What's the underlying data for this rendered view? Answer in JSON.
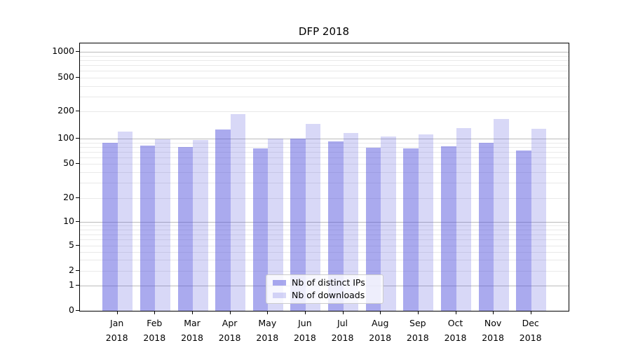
{
  "chart_data": {
    "type": "bar",
    "title": "DFP 2018",
    "y_scale": "log-like (symlog) with labeled ticks",
    "categories": [
      "Jan 2018",
      "Feb 2018",
      "Mar 2018",
      "Apr 2018",
      "May 2018",
      "Jun 2018",
      "Jul 2018",
      "Aug 2018",
      "Sep 2018",
      "Oct 2018",
      "Nov 2018",
      "Dec 2018"
    ],
    "series": [
      {
        "name": "Nb of distinct IPs",
        "color": "#aaaaee",
        "fill_rgba": "rgba(85,85,221,0.5)",
        "values": [
          90,
          83,
          80,
          125,
          76,
          100,
          93,
          78,
          76,
          81,
          90,
          72
        ]
      },
      {
        "name": "Nb of downloads",
        "color": "#d8d8f8",
        "fill_rgba": "rgba(85,85,221,0.23)",
        "values": [
          120,
          98,
          97,
          188,
          100,
          145,
          115,
          105,
          111,
          130,
          165,
          128
        ]
      }
    ],
    "y_tick_labels": [
      "1000",
      "500",
      "200",
      "100",
      "50",
      "20",
      "10",
      "5",
      "2",
      "1",
      "0"
    ],
    "y_tick_values": [
      1000,
      500,
      200,
      100,
      50,
      20,
      10,
      5,
      2,
      1,
      0
    ],
    "ylim": [
      0,
      1400
    ],
    "grid": {
      "major_values": [
        1,
        10,
        100,
        1000
      ],
      "minor_values": [
        2,
        3,
        4,
        5,
        6,
        7,
        8,
        9,
        20,
        30,
        40,
        50,
        60,
        70,
        80,
        90,
        200,
        300,
        400,
        500,
        600,
        700,
        800,
        900
      ],
      "major_color": "#bbbbbb",
      "minor_color": "#e9e9e9"
    },
    "legend": {
      "position": "lower-center-inside"
    }
  }
}
